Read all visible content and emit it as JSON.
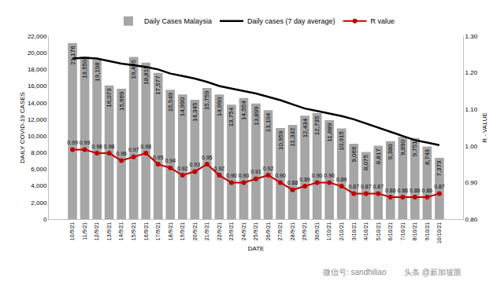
{
  "chart_data": {
    "type": "bar",
    "x_label": "DATE",
    "y_label": "DAILY COVID-19 CASES",
    "y2_label": "R - VALUE",
    "legend": "top",
    "grid": false,
    "categories": [
      "10/9/21",
      "11/9/21",
      "12/9/21",
      "13/9/21",
      "14/9/21",
      "15/9/21",
      "16/9/21",
      "17/9/21",
      "18/9/21",
      "19/9/21",
      "20/9/21",
      "21/9/21",
      "22/9/21",
      "23/9/21",
      "24/9/21",
      "25/9/21",
      "26/9/21",
      "27/9/21",
      "28/9/21",
      "29/9/21",
      "30/9/21",
      "1/10/21",
      "2/10/21",
      "3/10/21",
      "4/10/21",
      "5/10/21",
      "6/10/21",
      "7/10/21",
      "8/10/21",
      "9/10/21",
      "10/10/21"
    ],
    "series": [
      {
        "name": "Daily Cases Malaysia",
        "type": "bar",
        "color": "#a6a6a6",
        "data_labels": true,
        "values": [
          21176,
          19550,
          19198,
          16073,
          15669,
          19495,
          18815,
          17577,
          15549,
          14990,
          14345,
          15759,
          14990,
          13754,
          14554,
          13899,
          13104,
          10959,
          11332,
          12434,
          12735,
          11889,
          10915,
          9066,
          8075,
          8817,
          9380,
          9890,
          9751,
          8743,
          7373
        ],
        "value_labels": [
          "21,176",
          "19,550",
          "19,198",
          "16,073",
          "15,669",
          "19,495",
          "18,815",
          "17,577",
          "15,549",
          "14,990",
          "14,345",
          "15,759",
          "14,990",
          "13,754",
          "14,554",
          "13,899",
          "13,104",
          "10,959",
          "11,332",
          "12,434",
          "12,735",
          "11,889",
          "10,915",
          "9,066",
          "8,075",
          "8,817",
          "9,380",
          "9,890",
          "9,751",
          "8,743",
          "7,373"
        ]
      },
      {
        "name": "Daily cases (7 day average)",
        "type": "line",
        "color": "#000000",
        "values": [
          19300,
          19400,
          19300,
          19000,
          18700,
          18500,
          18300,
          18000,
          17500,
          17200,
          16900,
          16500,
          16000,
          15700,
          15400,
          15100,
          14700,
          14300,
          13800,
          13300,
          13000,
          12700,
          12400,
          12000,
          11500,
          11000,
          10500,
          10000,
          9500,
          9200,
          8900
        ]
      },
      {
        "name": "R value",
        "type": "line",
        "color": "#c00000",
        "marker": "circle",
        "axis": "y2",
        "data_labels": true,
        "values": [
          0.99,
          0.99,
          0.98,
          0.98,
          0.96,
          0.97,
          0.98,
          0.95,
          0.94,
          0.92,
          0.93,
          0.95,
          0.92,
          0.9,
          0.9,
          0.91,
          0.92,
          0.9,
          0.88,
          0.89,
          0.9,
          0.9,
          0.89,
          0.87,
          0.87,
          0.87,
          0.86,
          0.86,
          0.86,
          0.86,
          0.87
        ],
        "value_labels": [
          "0.99",
          "0.99",
          "0.98",
          "0.98",
          "0.96",
          "0.97",
          "0.98",
          "0.95",
          "0.94",
          "0.92",
          "0.93",
          "0.95",
          "0.92",
          "0.90",
          "0.90",
          "0.91",
          "0.92",
          "0.90",
          "0.88",
          "0.89",
          "0.90",
          "0.90",
          "0.89",
          "0.87",
          "0.87",
          "0.87",
          "0.86",
          "0.86",
          "0.86",
          "0.86",
          "0.87"
        ]
      }
    ],
    "ylim": [
      0,
      22000
    ],
    "yticks": [
      0,
      {
        "value": 2000,
        "label": "2,000"
      },
      {
        "value": 4000,
        "label": "4,000"
      },
      {
        "value": 6000,
        "label": "6,000"
      },
      {
        "value": 8000,
        "label": "8,000"
      },
      {
        "value": 10000,
        "label": "10,000"
      },
      {
        "value": 12000,
        "label": "12,000"
      },
      {
        "value": 14000,
        "label": "14,000"
      },
      {
        "value": 16000,
        "label": "16,000"
      },
      {
        "value": 18000,
        "label": "18,000"
      },
      {
        "value": 20000,
        "label": "20,000"
      },
      {
        "value": 22000,
        "label": "22,000"
      }
    ],
    "y2lim": [
      0.8,
      1.3
    ],
    "y2ticks": [
      {
        "value": 0.8,
        "label": "0.80"
      },
      {
        "value": 0.9,
        "label": "0.90"
      },
      {
        "value": 1.0,
        "label": "1.00"
      },
      {
        "value": 1.1,
        "label": "1.10"
      },
      {
        "value": 1.2,
        "label": "1.20"
      },
      {
        "value": 1.3,
        "label": "1.30"
      }
    ],
    "annotations": [
      "微信号: sandhiliao",
      "头条 @新加坡眼"
    ]
  }
}
